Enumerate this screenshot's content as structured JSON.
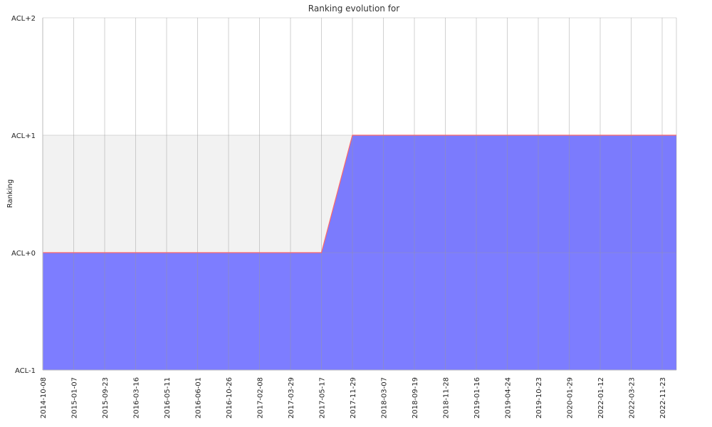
{
  "chart_data": {
    "type": "area",
    "title": "Ranking evolution for",
    "xlabel": "",
    "ylabel": "Ranking",
    "y_ticks": [
      "ACL-1",
      "ACL+0",
      "ACL+1",
      "ACL+2"
    ],
    "ylim": [
      -1,
      2
    ],
    "x_ticks": [
      "2014-10-08",
      "2015-01-07",
      "2015-09-23",
      "2016-03-16",
      "2016-05-11",
      "2016-06-01",
      "2016-10-26",
      "2017-02-08",
      "2017-03-29",
      "2017-05-17",
      "2017-11-29",
      "2018-03-07",
      "2018-09-19",
      "2018-11-28",
      "2019-01-16",
      "2019-04-24",
      "2019-10-23",
      "2020-01-29",
      "2022-01-12",
      "2022-03-23",
      "2022-11-23"
    ],
    "series": [
      {
        "x": [
          "2014-10-08",
          "2015-01-07",
          "2015-09-23",
          "2016-03-16",
          "2016-05-11",
          "2016-06-01",
          "2016-10-26",
          "2017-02-08",
          "2017-03-29",
          "2017-05-17",
          "2017-11-29",
          "2018-03-07",
          "2018-09-19",
          "2018-11-28",
          "2019-01-16",
          "2019-04-24",
          "2019-10-23",
          "2020-01-29",
          "2022-01-12",
          "2022-03-23",
          "2022-11-23"
        ],
        "values": [
          0,
          0,
          0,
          0,
          0,
          0,
          0,
          0,
          0,
          0,
          1,
          1,
          1,
          1,
          1,
          1,
          1,
          1,
          1,
          1,
          1
        ]
      }
    ],
    "grid": true,
    "colors": {
      "fill": "#6666ff",
      "line": "#ff6666",
      "band": "#f2f2f2",
      "grid": "#cccccc"
    }
  }
}
